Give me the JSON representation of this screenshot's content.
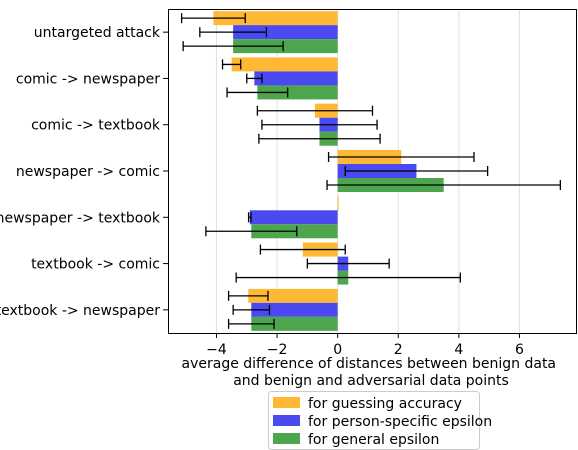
{
  "chart_data": {
    "type": "bar",
    "orientation": "horizontal",
    "categories": [
      "untargeted attack",
      "comic -> newspaper",
      "comic -> textbook",
      "newspaper -> comic",
      "newspaper -> textbook",
      "textbook -> comic",
      "textbook -> newspaper"
    ],
    "series": [
      {
        "name": "for guessing accuracy",
        "color": "#ffb833",
        "values": [
          -4.1,
          -3.5,
          -0.75,
          2.1,
          0.02,
          -1.15,
          -2.95
        ],
        "err": [
          1.05,
          0.3,
          1.9,
          2.4,
          0,
          1.4,
          0.65
        ]
      },
      {
        "name": "for person-specific epsilon",
        "color": "#4a4af0",
        "values": [
          -3.45,
          -2.75,
          -0.6,
          2.6,
          -2.9,
          0.35,
          -2.85
        ],
        "err": [
          1.1,
          0.25,
          1.9,
          2.35,
          0.04,
          1.35,
          0.6
        ]
      },
      {
        "name": "for general epsilon",
        "color": "#4da64d",
        "values": [
          -3.45,
          -2.65,
          -0.6,
          3.5,
          -2.85,
          0.35,
          -2.85
        ],
        "err": [
          1.65,
          1.0,
          2.0,
          3.85,
          1.5,
          3.7,
          0.75
        ]
      }
    ],
    "xlabel": "average difference of distances between benign data\nand benign and adversarial data points",
    "xlim": [
      -5.6,
      7.9
    ],
    "xticks": [
      -4,
      -2,
      0,
      2,
      4,
      6
    ],
    "grid": "vertical",
    "legend_position": "bottom-center"
  }
}
